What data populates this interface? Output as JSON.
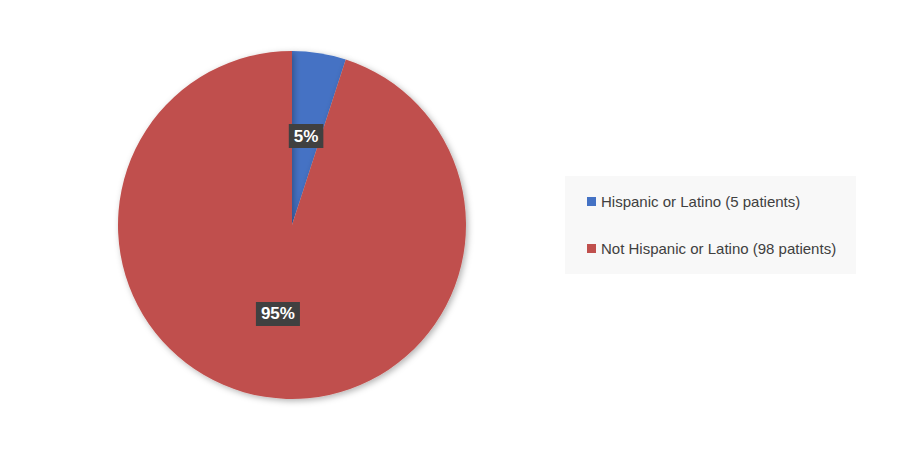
{
  "chart_data": {
    "type": "pie",
    "categories": [
      "Hispanic or Latino (5 patients)",
      "Not Hispanic or Latino (98 patients)"
    ],
    "values": [
      5,
      95
    ],
    "value_labels": [
      "5%",
      "95%"
    ],
    "colors": [
      "#4472c4",
      "#c0504d"
    ],
    "data_labels": true,
    "legend": "right"
  }
}
